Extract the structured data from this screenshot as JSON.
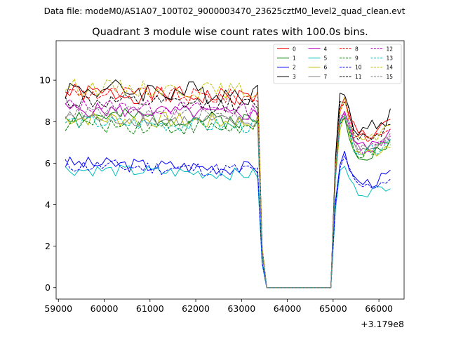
{
  "figure": {
    "suptitle": "Data file: modeM0/AS1A07_100T02_9000003470_23625cztM0_level2_quad_clean.evt"
  },
  "chart_data": {
    "type": "line",
    "title": "Quadrant 3 module wise count rates with 100.0s bins.",
    "xlabel": "",
    "ylabel": "",
    "x_offset_label": "+3.179e8",
    "xlim": [
      58950,
      66550
    ],
    "ylim": [
      -0.55,
      11.9
    ],
    "xticks": [
      59000,
      60000,
      61000,
      62000,
      63000,
      64000,
      65000,
      66000
    ],
    "xtick_labels": [
      "59000",
      "60000",
      "61000",
      "62000",
      "63000",
      "64000",
      "65000",
      "66000"
    ],
    "yticks": [
      0,
      2,
      4,
      6,
      8,
      10
    ],
    "ytick_labels": [
      "0",
      "2",
      "4",
      "6",
      "8",
      "10"
    ],
    "legend_position": "top-right",
    "segments": [
      {
        "x_start": 59150,
        "x_end": 63350
      },
      {
        "x_start": 63450,
        "x_end": 63450
      },
      {
        "x_start": 63550,
        "x_end": 64950
      },
      {
        "x_start": 65050,
        "x_end": 65050
      },
      {
        "x_start": 65150,
        "x_end": 66250
      }
    ],
    "series": [
      {
        "name": "0",
        "color": "#ff0000",
        "dash": "solid",
        "level1": 9.4,
        "level2": 8.0,
        "amp": 0.45,
        "seed": 1
      },
      {
        "name": "1",
        "color": "#008000",
        "dash": "solid",
        "level1": 8.3,
        "level2": 7.0,
        "amp": 0.4,
        "seed": 2
      },
      {
        "name": "2",
        "color": "#0000ff",
        "dash": "solid",
        "level1": 6.0,
        "level2": 5.5,
        "amp": 0.35,
        "seed": 3
      },
      {
        "name": "3",
        "color": "#000000",
        "dash": "solid",
        "level1": 9.6,
        "level2": 8.3,
        "amp": 0.55,
        "seed": 4
      },
      {
        "name": "4",
        "color": "#bf00bf",
        "dash": "solid",
        "level1": 8.6,
        "level2": 7.4,
        "amp": 0.35,
        "seed": 5
      },
      {
        "name": "5",
        "color": "#00bfbf",
        "dash": "solid",
        "level1": 5.7,
        "level2": 5.0,
        "amp": 0.3,
        "seed": 6
      },
      {
        "name": "6",
        "color": "#bfbf00",
        "dash": "solid",
        "level1": 8.2,
        "level2": 7.0,
        "amp": 0.4,
        "seed": 7
      },
      {
        "name": "7",
        "color": "#808080",
        "dash": "solid",
        "level1": 8.2,
        "level2": 7.2,
        "amp": 0.35,
        "seed": 8
      },
      {
        "name": "8",
        "color": "#ff0000",
        "dash": "dashed",
        "level1": 9.4,
        "level2": 7.8,
        "amp": 0.4,
        "seed": 9
      },
      {
        "name": "9",
        "color": "#008000",
        "dash": "dashed",
        "level1": 7.9,
        "level2": 7.0,
        "amp": 0.4,
        "seed": 10
      },
      {
        "name": "10",
        "color": "#0000ff",
        "dash": "dashed",
        "level1": 5.9,
        "level2": 5.3,
        "amp": 0.35,
        "seed": 11
      },
      {
        "name": "11",
        "color": "#000000",
        "dash": "dashed",
        "level1": 9.0,
        "level2": 7.9,
        "amp": 0.4,
        "seed": 12
      },
      {
        "name": "12",
        "color": "#bf00bf",
        "dash": "dashed",
        "level1": 8.8,
        "level2": 7.3,
        "amp": 0.35,
        "seed": 13
      },
      {
        "name": "13",
        "color": "#00bfbf",
        "dash": "dashed",
        "level1": 8.0,
        "level2": 7.1,
        "amp": 0.35,
        "seed": 14
      },
      {
        "name": "14",
        "color": "#bfbf00",
        "dash": "dashed",
        "level1": 9.7,
        "level2": 7.7,
        "amp": 0.4,
        "seed": 15
      },
      {
        "name": "15",
        "color": "#808080",
        "dash": "dashed",
        "level1": 8.5,
        "level2": 7.3,
        "amp": 0.35,
        "seed": 16
      }
    ]
  }
}
